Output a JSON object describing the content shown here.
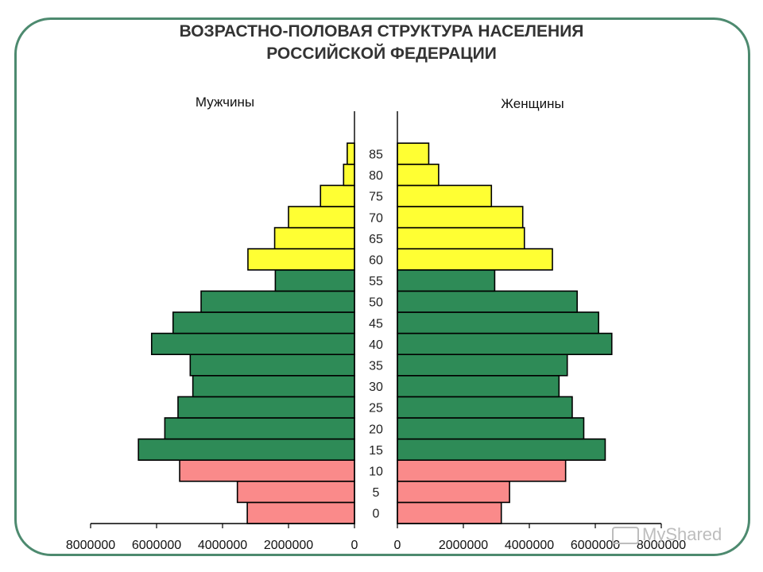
{
  "title_line1": "ВОЗРАСТНО-ПОЛОВАЯ СТРУКТУРА НАСЕЛЕНИЯ",
  "title_line2": "РОССИЙСКОЙ ФЕДЕРАЦИИ",
  "watermark": "MyShared",
  "colors": {
    "young": "#fa8a8a",
    "working": "#2e8b57",
    "old": "#ffff33",
    "frame": "#4d8a6f"
  },
  "chart_data": {
    "type": "bar",
    "title": "ВОЗРАСТНО-ПОЛОВАЯ СТРУКТУРА НАСЕЛЕНИЯ РОССИЙСКОЙ ФЕДЕРАЦИИ",
    "left_label": "Мужчины",
    "right_label": "Женщины",
    "categories": [
      "0",
      "5",
      "10",
      "15",
      "20",
      "25",
      "30",
      "35",
      "40",
      "45",
      "50",
      "55",
      "60",
      "65",
      "70",
      "75",
      "80",
      "85"
    ],
    "age_group": [
      "young",
      "young",
      "young",
      "working",
      "working",
      "working",
      "working",
      "working",
      "working",
      "working",
      "working",
      "working",
      "old",
      "old",
      "old",
      "old",
      "old",
      "old"
    ],
    "series": [
      {
        "name": "Мужчины",
        "values": [
          3250000,
          3550000,
          5300000,
          6550000,
          5750000,
          5350000,
          4900000,
          4980000,
          6150000,
          5500000,
          4650000,
          2400000,
          3230000,
          2420000,
          2000000,
          1030000,
          330000,
          220000
        ]
      },
      {
        "name": "Женщины",
        "values": [
          3150000,
          3400000,
          5100000,
          6300000,
          5650000,
          5300000,
          4900000,
          5150000,
          6500000,
          6100000,
          5450000,
          2950000,
          4700000,
          3850000,
          3800000,
          2850000,
          1250000,
          950000
        ]
      }
    ],
    "xlim": [
      0,
      8000000
    ],
    "x_ticks": [
      "8000000",
      "6000000",
      "4000000",
      "2000000",
      "0"
    ],
    "x_ticks_right": [
      "0",
      "2000000",
      "4000000",
      "6000000",
      "8000000"
    ]
  }
}
